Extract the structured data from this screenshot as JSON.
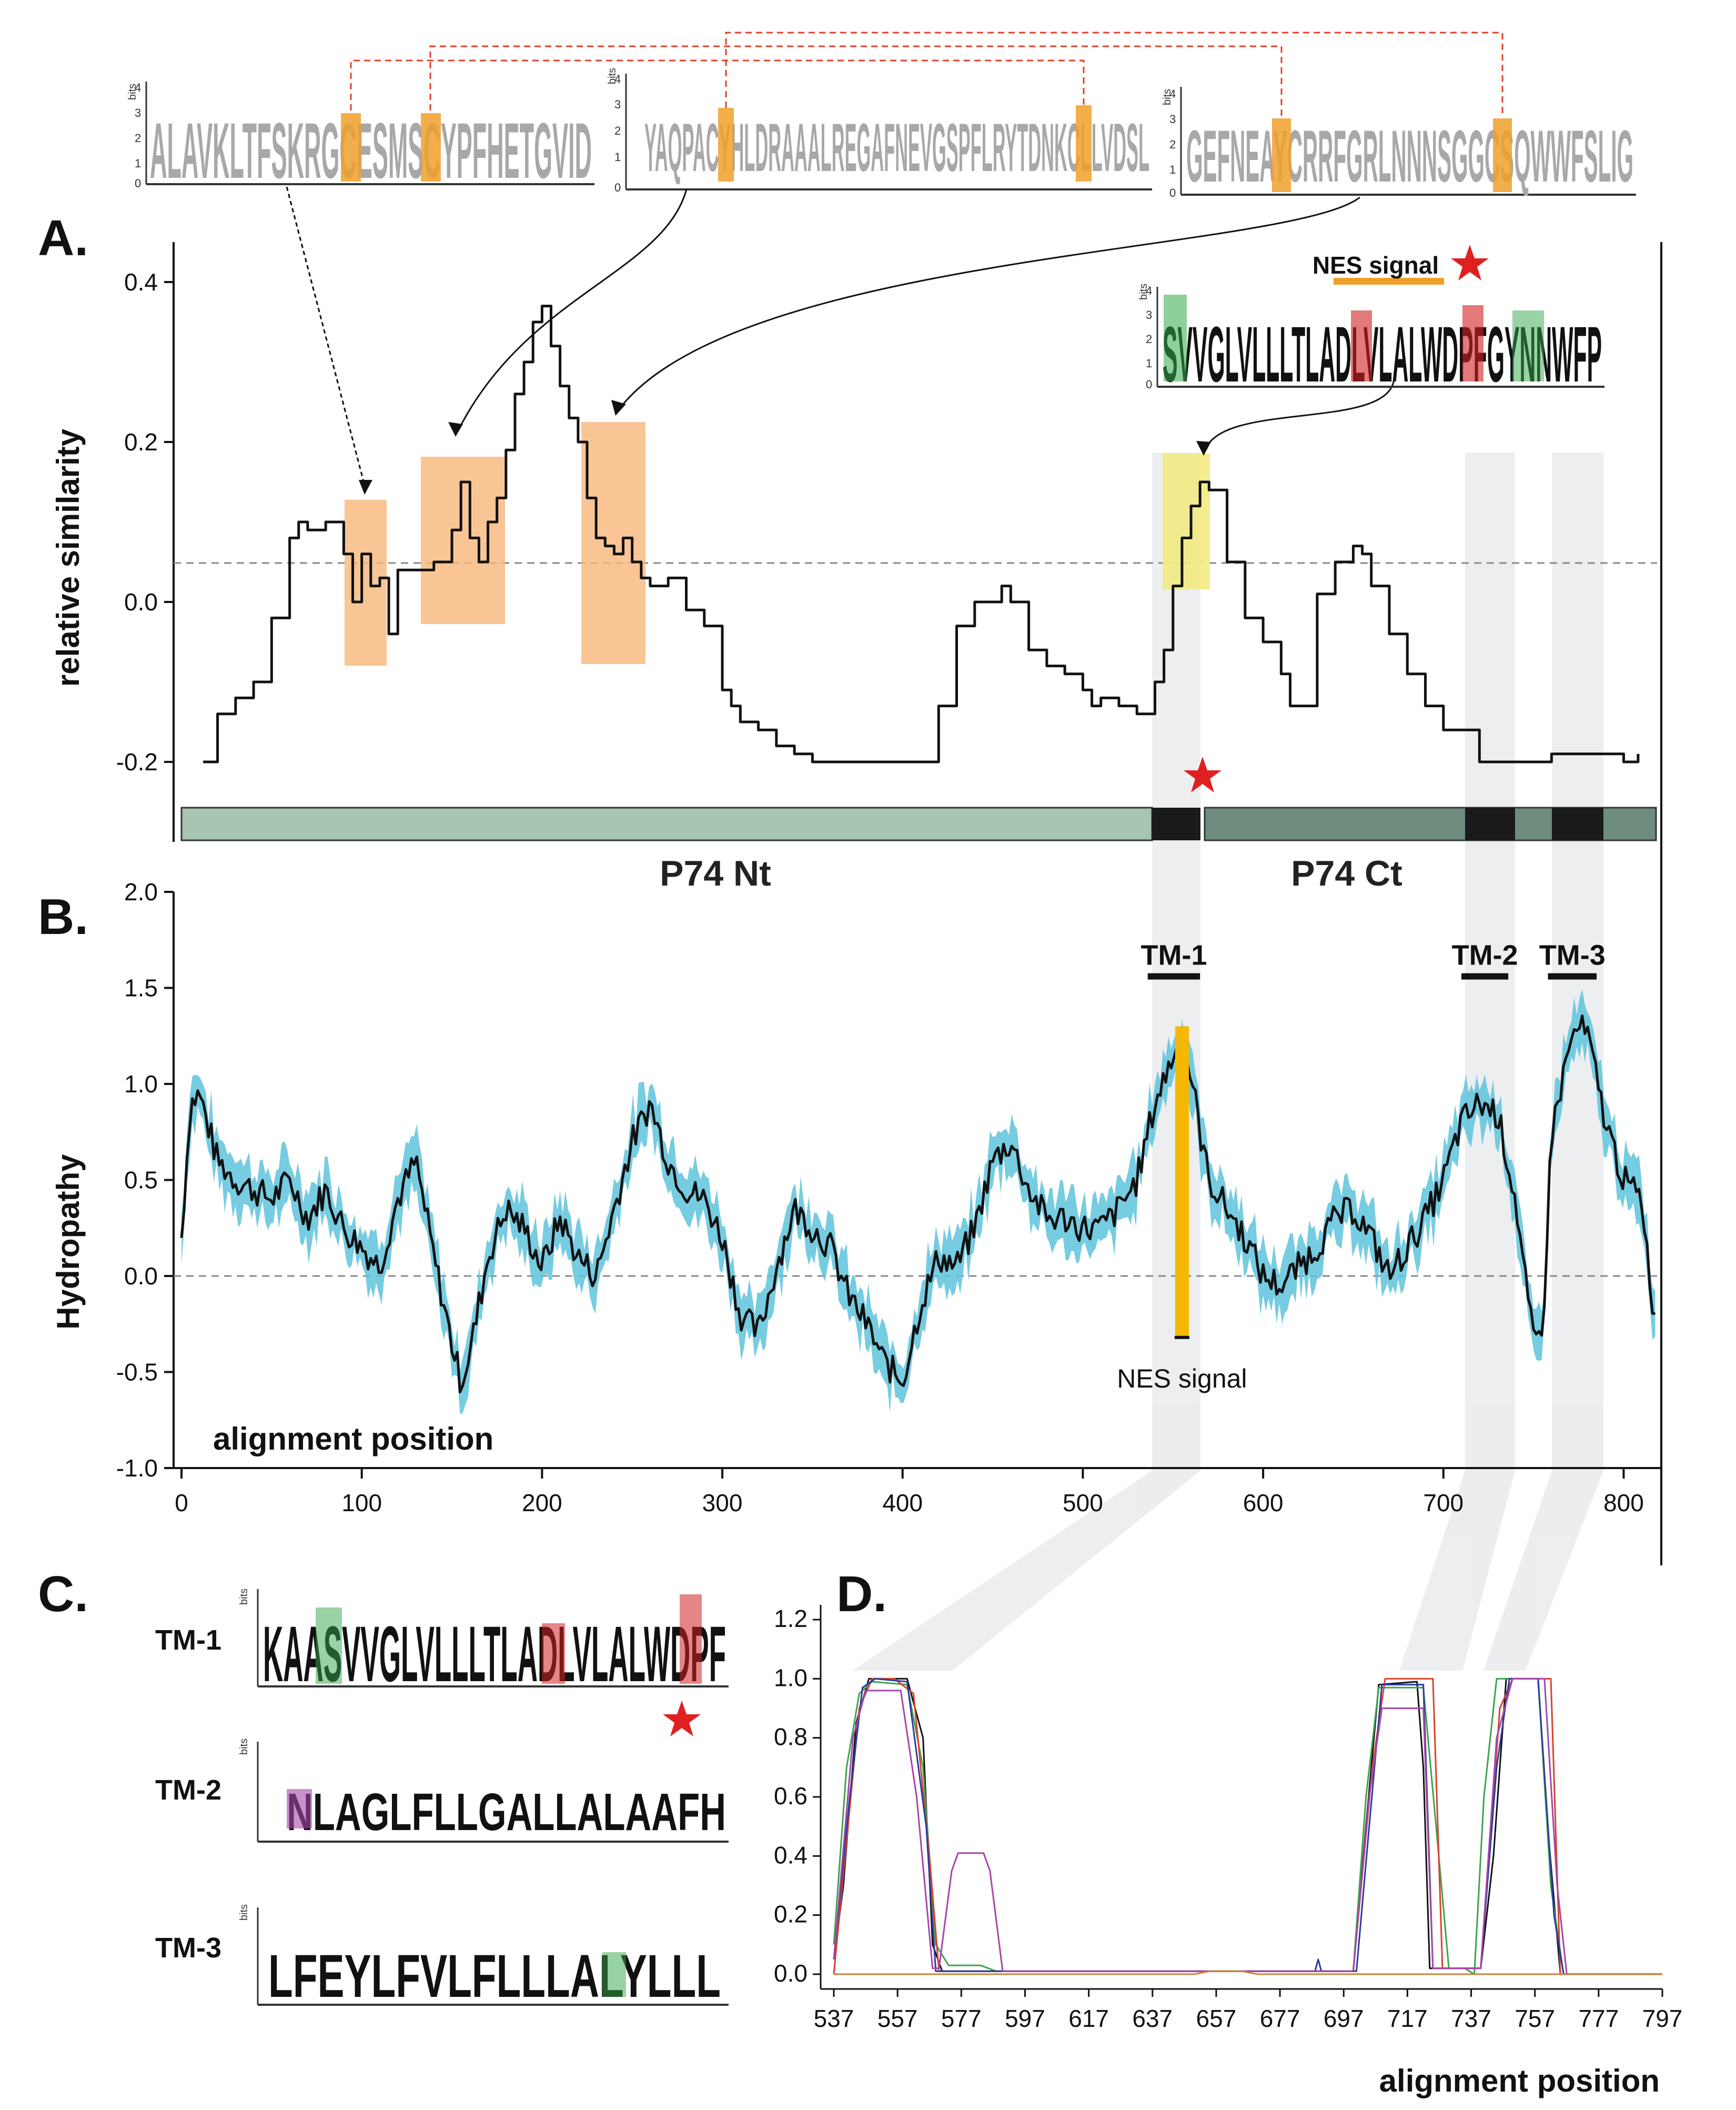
{
  "panels": {
    "a": "A.",
    "b": "B.",
    "c": "C.",
    "d": "D."
  },
  "chart_data": [
    {
      "id": "A",
      "type": "line",
      "ylabel": "relative similarity",
      "ylim": [
        -0.3,
        0.45
      ],
      "yticks": [
        {
          "v": 0.4,
          "label": "0.4"
        },
        {
          "v": 0.2,
          "label": "0.2"
        },
        {
          "v": 0.0,
          "label": "0.0"
        },
        {
          "v": -0.2,
          "label": "-0.2"
        }
      ],
      "reference_line": 0.045,
      "x": [
        12,
        20,
        30,
        40,
        50,
        60,
        65,
        70,
        80,
        90,
        95,
        100,
        105,
        110,
        115,
        120,
        125,
        130,
        140,
        150,
        155,
        160,
        165,
        170,
        175,
        180,
        185,
        190,
        195,
        200,
        205,
        210,
        215,
        220,
        225,
        230,
        235,
        240,
        245,
        250,
        255,
        260,
        270,
        280,
        290,
        300,
        305,
        310,
        320,
        330,
        340,
        350,
        360,
        370,
        380,
        390,
        400,
        410,
        420,
        430,
        440,
        450,
        455,
        460,
        470,
        480,
        490,
        500,
        505,
        510,
        520,
        530,
        540,
        545,
        550,
        555,
        560,
        565,
        570,
        580,
        590,
        600,
        610,
        615,
        620,
        630,
        640,
        650,
        655,
        660,
        670,
        680,
        690,
        700,
        720,
        740,
        760,
        780,
        800,
        808
      ],
      "values": [
        -0.2,
        -0.14,
        -0.12,
        -0.1,
        -0.02,
        0.08,
        0.1,
        0.09,
        0.1,
        0.06,
        0.0,
        0.06,
        0.02,
        0.03,
        -0.04,
        0.04,
        0.04,
        0.04,
        0.05,
        0.09,
        0.15,
        0.08,
        0.05,
        0.1,
        0.13,
        0.19,
        0.26,
        0.3,
        0.35,
        0.37,
        0.32,
        0.27,
        0.23,
        0.2,
        0.13,
        0.08,
        0.07,
        0.06,
        0.08,
        0.05,
        0.03,
        0.02,
        0.03,
        -0.01,
        -0.03,
        -0.11,
        -0.13,
        -0.15,
        -0.16,
        -0.18,
        -0.19,
        -0.2,
        -0.2,
        -0.2,
        -0.2,
        -0.2,
        -0.2,
        -0.2,
        -0.13,
        -0.03,
        0.0,
        0.0,
        0.02,
        0.0,
        -0.06,
        -0.08,
        -0.09,
        -0.11,
        -0.13,
        -0.12,
        -0.13,
        -0.14,
        -0.1,
        -0.06,
        0.02,
        0.08,
        0.12,
        0.15,
        0.14,
        0.05,
        -0.02,
        -0.05,
        -0.09,
        -0.13,
        -0.13,
        0.01,
        0.05,
        0.07,
        0.06,
        0.02,
        -0.04,
        -0.09,
        -0.13,
        -0.16,
        -0.2,
        -0.2,
        -0.19,
        -0.19,
        -0.2,
        -0.19
      ],
      "segment_labels": {
        "nt": "P74 Nt",
        "ct": "P74 Ct"
      },
      "nes_label": "NES signal",
      "logo_sequences": {
        "logo1": "ALAVKLTFSKRGCESMSCYPFHETGVID",
        "logo2": "YAQPACYHLDRAAALREGAFNEVGSPFLRYTDNKCLLVDSL",
        "logo3": "GEFNEAYCRRFGRLNNNSGGCSQWWFSLIG",
        "nes_logo": "SVVGLVLLLTLADLVLALWDPFGYNNWFP"
      }
    },
    {
      "id": "B",
      "type": "line",
      "ylabel": "Hydropathy",
      "xlabel": "alignment position",
      "xlim": [
        0,
        820
      ],
      "ylim": [
        -1.0,
        2.0
      ],
      "xticks": [
        {
          "v": 0,
          "label": "0"
        },
        {
          "v": 100,
          "label": "100"
        },
        {
          "v": 200,
          "label": "200"
        },
        {
          "v": 300,
          "label": "300"
        },
        {
          "v": 400,
          "label": "400"
        },
        {
          "v": 500,
          "label": "500"
        },
        {
          "v": 600,
          "label": "600"
        },
        {
          "v": 700,
          "label": "700"
        },
        {
          "v": 800,
          "label": "800"
        }
      ],
      "yticks": [
        {
          "v": 2.0,
          "label": "2.0"
        },
        {
          "v": 1.5,
          "label": "1.5"
        },
        {
          "v": 1.0,
          "label": "1.0"
        },
        {
          "v": 0.5,
          "label": "0.5"
        },
        {
          "v": 0.0,
          "label": "0.0"
        },
        {
          "v": -0.5,
          "label": "-0.5"
        },
        {
          "v": -1.0,
          "label": "-1.0"
        }
      ],
      "x": [
        0,
        5,
        10,
        20,
        30,
        40,
        50,
        60,
        70,
        80,
        90,
        100,
        110,
        120,
        130,
        140,
        150,
        155,
        160,
        170,
        180,
        190,
        200,
        210,
        220,
        230,
        240,
        250,
        260,
        270,
        280,
        290,
        300,
        310,
        320,
        330,
        340,
        350,
        360,
        370,
        380,
        390,
        400,
        410,
        420,
        430,
        440,
        450,
        460,
        470,
        480,
        490,
        500,
        510,
        520,
        530,
        540,
        550,
        555,
        560,
        565,
        570,
        580,
        590,
        600,
        610,
        620,
        630,
        640,
        650,
        660,
        670,
        680,
        690,
        700,
        710,
        720,
        730,
        740,
        745,
        750,
        755,
        760,
        770,
        775,
        780,
        790,
        800,
        810,
        818
      ],
      "values": [
        0.2,
        0.9,
        0.95,
        0.6,
        0.5,
        0.45,
        0.4,
        0.5,
        0.3,
        0.45,
        0.25,
        0.15,
        0.05,
        0.4,
        0.6,
        0.1,
        -0.35,
        -0.55,
        -0.4,
        0.1,
        0.35,
        0.25,
        0.05,
        0.3,
        0.1,
        0.0,
        0.35,
        0.7,
        0.9,
        0.6,
        0.45,
        0.4,
        0.2,
        -0.2,
        -0.3,
        0.05,
        0.35,
        0.25,
        0.15,
        -0.1,
        -0.25,
        -0.45,
        -0.55,
        -0.15,
        0.1,
        0.05,
        0.25,
        0.6,
        0.7,
        0.45,
        0.3,
        0.3,
        0.25,
        0.25,
        0.35,
        0.5,
        0.9,
        1.15,
        1.2,
        1.05,
        0.75,
        0.5,
        0.35,
        0.2,
        0.0,
        -0.05,
        0.05,
        0.15,
        0.3,
        0.35,
        0.2,
        0.0,
        0.15,
        0.3,
        0.5,
        0.8,
        0.9,
        0.85,
        0.4,
        0.0,
        -0.35,
        -0.3,
        0.75,
        1.2,
        1.3,
        1.25,
        0.8,
        0.5,
        0.4,
        -0.3
      ],
      "band_halfwidth": 0.12,
      "nes_bar": {
        "x": 555,
        "y_from": -0.32,
        "y_to": 1.3
      },
      "tm_regions": [
        {
          "label": "TM-1",
          "x0": 536,
          "x1": 565
        },
        {
          "label": "TM-2",
          "x0": 710,
          "x1": 736
        },
        {
          "label": "TM-3",
          "x0": 758,
          "x1": 785
        }
      ],
      "nes_label": "NES signal"
    },
    {
      "id": "C",
      "type": "table",
      "rows": [
        {
          "label": "TM-1",
          "sequence": "KAASVVGLVLLLTLADLVLALWDPF"
        },
        {
          "label": "TM-2",
          "sequence": "NLAGLFLLGALLALAAFH"
        },
        {
          "label": "TM-3",
          "sequence": "LFEYLFVLFLLLALYLLL"
        }
      ]
    },
    {
      "id": "D",
      "type": "line",
      "xlabel": "alignment position",
      "xlim": [
        537,
        797
      ],
      "ylim": [
        -0.05,
        1.25
      ],
      "xticks": [
        {
          "v": 537,
          "label": "537"
        },
        {
          "v": 557,
          "label": "557"
        },
        {
          "v": 577,
          "label": "577"
        },
        {
          "v": 597,
          "label": "597"
        },
        {
          "v": 617,
          "label": "617"
        },
        {
          "v": 637,
          "label": "637"
        },
        {
          "v": 657,
          "label": "657"
        },
        {
          "v": 677,
          "label": "677"
        },
        {
          "v": 697,
          "label": "697"
        },
        {
          "v": 717,
          "label": "717"
        },
        {
          "v": 737,
          "label": "737"
        },
        {
          "v": 757,
          "label": "757"
        },
        {
          "v": 777,
          "label": "777"
        },
        {
          "v": 797,
          "label": "797"
        }
      ],
      "yticks": [
        {
          "v": 1.2,
          "label": "1.2"
        },
        {
          "v": 1.0,
          "label": "1.0"
        },
        {
          "v": 0.8,
          "label": "0.8"
        },
        {
          "v": 0.6,
          "label": "0.6"
        },
        {
          "v": 0.4,
          "label": "0.4"
        },
        {
          "v": 0.2,
          "label": "0.2"
        },
        {
          "v": 0.0,
          "label": "0.0"
        }
      ],
      "series": [
        {
          "name": "black",
          "color": "#111111",
          "x": [
            537,
            540,
            544,
            548,
            560,
            565,
            568,
            571,
            700,
            704,
            708,
            720,
            722,
            724,
            740,
            744,
            748,
            758,
            761,
            765,
            797
          ],
          "y": [
            0.05,
            0.3,
            0.85,
            1.0,
            1.0,
            0.8,
            0.1,
            0.01,
            0.01,
            0.5,
            0.98,
            0.99,
            0.7,
            0.02,
            0.02,
            0.4,
            1.0,
            1.0,
            0.5,
            0.0,
            0.0
          ]
        },
        {
          "name": "green",
          "color": "#3fa34d",
          "x": [
            537,
            541,
            545,
            549,
            560,
            565,
            569,
            573,
            583,
            588,
            700,
            704,
            708,
            722,
            726,
            730,
            735,
            738,
            741,
            745,
            758,
            762,
            766,
            797
          ],
          "y": [
            0.1,
            0.7,
            0.95,
            0.99,
            0.98,
            0.7,
            0.1,
            0.03,
            0.03,
            0.01,
            0.01,
            0.6,
            0.97,
            0.97,
            0.5,
            0.02,
            0.02,
            0.0,
            0.6,
            1.0,
            1.0,
            0.3,
            0.0,
            0.0
          ]
        },
        {
          "name": "red",
          "color": "#d9432b",
          "x": [
            537,
            545,
            549,
            556,
            562,
            567,
            570,
            700,
            706,
            710,
            725,
            728,
            740,
            746,
            750,
            762,
            765,
            797
          ],
          "y": [
            0.0,
            0.9,
            1.0,
            1.0,
            0.95,
            0.4,
            0.01,
            0.01,
            0.7,
            1.0,
            1.0,
            0.02,
            0.02,
            0.9,
            1.0,
            1.0,
            0.0,
            0.0
          ]
        },
        {
          "name": "blue",
          "color": "#2b3c9e",
          "x": [
            537,
            542,
            546,
            550,
            560,
            566,
            569,
            688,
            689,
            690,
            701,
            705,
            709,
            722,
            725,
            740,
            745,
            749,
            758,
            763,
            766,
            797
          ],
          "y": [
            0.05,
            0.6,
            0.97,
            1.0,
            0.99,
            0.5,
            0.01,
            0.01,
            0.05,
            0.01,
            0.01,
            0.5,
            0.98,
            0.98,
            0.02,
            0.02,
            0.7,
            1.0,
            1.0,
            0.2,
            0.0,
            0.0
          ]
        },
        {
          "name": "purple",
          "color": "#a646a8",
          "x": [
            537,
            543,
            547,
            558,
            563,
            568,
            570,
            574,
            576,
            584,
            586,
            590,
            700,
            705,
            709,
            722,
            725,
            740,
            745,
            750,
            760,
            764,
            767,
            797
          ],
          "y": [
            0.05,
            0.8,
            0.96,
            0.96,
            0.6,
            0.02,
            0.02,
            0.35,
            0.41,
            0.41,
            0.35,
            0.01,
            0.01,
            0.6,
            0.9,
            0.9,
            0.02,
            0.02,
            0.8,
            1.0,
            1.0,
            0.3,
            0.0,
            0.0
          ]
        },
        {
          "name": "orange",
          "color": "#c9853b",
          "x": [
            537,
            650,
            655,
            665,
            670,
            797
          ],
          "y": [
            0.0,
            0.0,
            0.01,
            0.01,
            0.0,
            0.0
          ]
        }
      ]
    }
  ]
}
